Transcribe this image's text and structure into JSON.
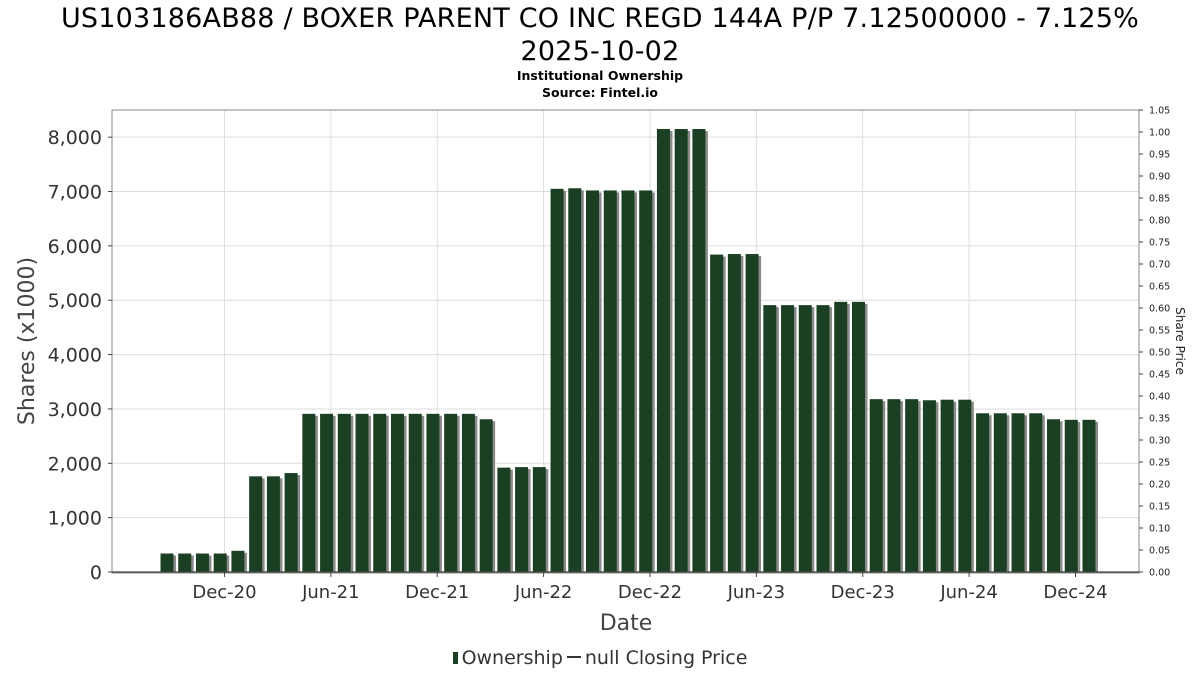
{
  "title_line1": "US103186AB88 / BOXER PARENT CO INC REGD 144A P/P 7.12500000 - 7.125%",
  "title_line2": "2025-10-02",
  "subtitle": "Institutional Ownership",
  "source": "Source: Fintel.io",
  "legend": {
    "ownership": "Ownership",
    "price": "null Closing Price"
  },
  "colors": {
    "bar": "#1b3f22",
    "bar_shadow": "#8a8a8a",
    "grid": "#dddddd",
    "frame": "#888888"
  },
  "chart_data": {
    "type": "bar",
    "xlabel": "Date",
    "ylabel": "Shares (x1000)",
    "ylabel_right": "Share Price",
    "ylim": [
      0,
      8500
    ],
    "ylim_right": [
      0,
      1.05
    ],
    "grid": true,
    "legend_position": "bottom",
    "y_ticks": [
      "0",
      "1,000",
      "2,000",
      "3,000",
      "4,000",
      "5,000",
      "6,000",
      "7,000",
      "8,000"
    ],
    "y_right_ticks": [
      "0.00",
      "0.05",
      "0.10",
      "0.15",
      "0.20",
      "0.25",
      "0.30",
      "0.35",
      "0.40",
      "0.45",
      "0.50",
      "0.55",
      "0.60",
      "0.65",
      "0.70",
      "0.75",
      "0.80",
      "0.85",
      "0.90",
      "0.95",
      "1.00",
      "1.05"
    ],
    "x_ticks": [
      "Dec-20",
      "Jun-21",
      "Dec-21",
      "Jun-22",
      "Dec-22",
      "Jun-23",
      "Dec-23",
      "Jun-24",
      "Dec-24"
    ],
    "x": [
      "2020-10",
      "2020-11",
      "2020-12",
      "2021-01",
      "2021-02",
      "2021-03",
      "2021-04",
      "2021-05",
      "2021-06",
      "2021-07",
      "2021-08",
      "2021-09",
      "2021-10",
      "2021-11",
      "2021-12",
      "2022-01",
      "2022-02",
      "2022-03",
      "2022-04",
      "2022-05",
      "2022-06",
      "2022-07",
      "2022-08",
      "2022-09",
      "2022-10",
      "2022-11",
      "2022-12",
      "2023-01",
      "2023-02",
      "2023-03",
      "2023-04",
      "2023-05",
      "2023-06",
      "2023-07",
      "2023-08",
      "2023-09",
      "2023-10",
      "2023-11",
      "2023-12",
      "2024-01",
      "2024-02",
      "2024-03",
      "2024-04",
      "2024-05",
      "2024-06",
      "2024-07",
      "2024-08",
      "2024-09",
      "2024-10",
      "2024-11",
      "2024-12",
      "2025-01",
      "2025-02"
    ],
    "series": [
      {
        "name": "Ownership",
        "values": [
          340,
          340,
          340,
          340,
          390,
          1760,
          1760,
          1820,
          2910,
          2910,
          2910,
          2910,
          2910,
          2910,
          2910,
          2910,
          2910,
          2910,
          2810,
          1920,
          1930,
          1930,
          7050,
          7060,
          7020,
          7020,
          7020,
          7020,
          8150,
          8150,
          8150,
          5840,
          5850,
          5850,
          4910,
          4910,
          4910,
          4910,
          4970,
          4970,
          3180,
          3180,
          3180,
          3160,
          3170,
          3170,
          2920,
          2920,
          2920,
          2920,
          2810,
          2800,
          2800
        ]
      }
    ]
  }
}
